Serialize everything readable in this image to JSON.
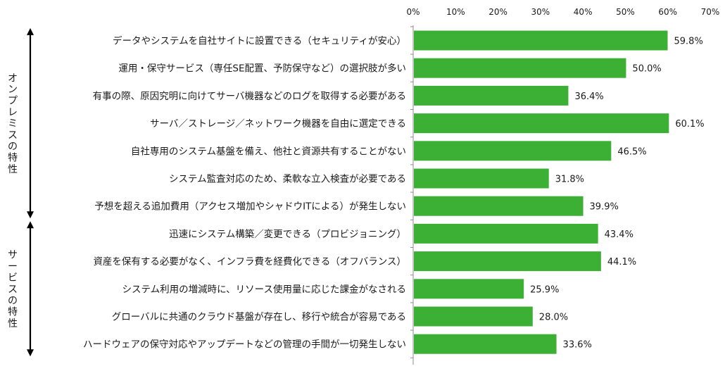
{
  "chart_data": {
    "type": "bar",
    "orientation": "horizontal",
    "title": "",
    "xlabel": "",
    "ylabel": "",
    "xlim": [
      0,
      70
    ],
    "x_ticks": [
      "0%",
      "10%",
      "20%",
      "30%",
      "40%",
      "50%",
      "60%",
      "70%"
    ],
    "x_axis_position": "top",
    "grid": false,
    "legend": "none",
    "bar_color": "#3cb035",
    "value_suffix": "%",
    "groups": [
      {
        "label": "オンプレミスの特性",
        "categories_start": 0,
        "categories_end": 6
      },
      {
        "label": "サービスの特性",
        "categories_start": 7,
        "categories_end": 11
      }
    ],
    "categories": [
      "データやシステムを自社サイトに設置できる（セキュリティが安心）",
      "運用・保守サービス（専任SE配置、予防保守など）の選択肢が多い",
      "有事の際、原因究明に向けてサーバ機器などのログを取得する必要がある",
      "サーバ／ストレージ／ネットワーク機器を自由に選定できる",
      "自社専用のシステム基盤を備え、他社と資源共有することがない",
      "システム監査対応のため、柔軟な立入検査が必要である",
      "予想を超える追加費用（アクセス増加やシャドウITによる）が発生しない",
      "迅速にシステム構築／変更できる（プロビジョニング）",
      "資産を保有する必要がなく、インフラ費を経費化できる（オフバランス）",
      "システム利用の増減時に、リソース使用量に応じた課金がなされる",
      "グローバルに共通のクラウド基盤が存在し、移行や統合が容易である",
      "ハードウェアの保守対応やアップデートなどの管理の手間が一切発生しない"
    ],
    "values": [
      59.8,
      50.0,
      36.4,
      60.1,
      46.5,
      31.8,
      39.9,
      43.4,
      44.1,
      25.9,
      28.0,
      33.6
    ],
    "value_labels": [
      "59.8%",
      "50.0%",
      "36.4%",
      "60.1%",
      "46.5%",
      "31.8%",
      "39.9%",
      "43.4%",
      "44.1%",
      "25.9%",
      "28.0%",
      "33.6%"
    ]
  }
}
